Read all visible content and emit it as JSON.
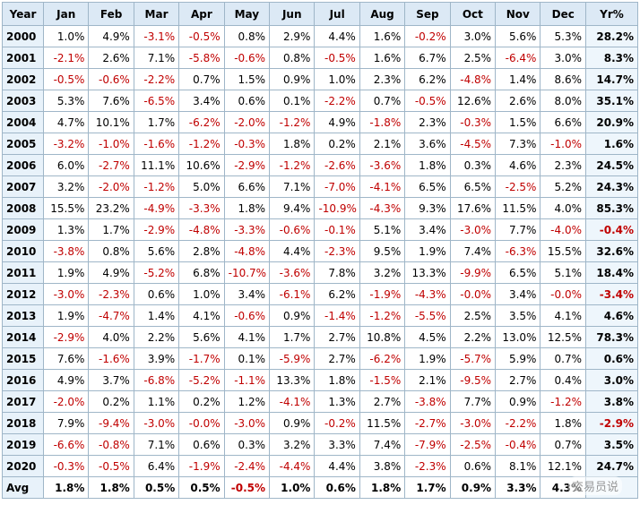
{
  "table": {
    "header": [
      "Year",
      "Jan",
      "Feb",
      "Mar",
      "Apr",
      "May",
      "Jun",
      "Jul",
      "Aug",
      "Sep",
      "Oct",
      "Nov",
      "Dec",
      "Yr%"
    ],
    "rows": [
      [
        "2000",
        "1.0%",
        "4.9%",
        "-3.1%",
        "-0.5%",
        "0.8%",
        "2.9%",
        "4.4%",
        "1.6%",
        "-0.2%",
        "3.0%",
        "5.6%",
        "5.3%",
        "28.2%"
      ],
      [
        "2001",
        "-2.1%",
        "2.6%",
        "7.1%",
        "-5.8%",
        "-0.6%",
        "0.8%",
        "-0.5%",
        "1.6%",
        "6.7%",
        "2.5%",
        "-6.4%",
        "3.0%",
        "8.3%"
      ],
      [
        "2002",
        "-0.5%",
        "-0.6%",
        "-2.2%",
        "0.7%",
        "1.5%",
        "0.9%",
        "1.0%",
        "2.3%",
        "6.2%",
        "-4.8%",
        "1.4%",
        "8.6%",
        "14.7%"
      ],
      [
        "2003",
        "5.3%",
        "7.6%",
        "-6.5%",
        "3.4%",
        "0.6%",
        "0.1%",
        "-2.2%",
        "0.7%",
        "-0.5%",
        "12.6%",
        "2.6%",
        "8.0%",
        "35.1%"
      ],
      [
        "2004",
        "4.7%",
        "10.1%",
        "1.7%",
        "-6.2%",
        "-2.0%",
        "-1.2%",
        "4.9%",
        "-1.8%",
        "2.3%",
        "-0.3%",
        "1.5%",
        "6.6%",
        "20.9%"
      ],
      [
        "2005",
        "-3.2%",
        "-1.0%",
        "-1.6%",
        "-1.2%",
        "-0.3%",
        "1.8%",
        "0.2%",
        "2.1%",
        "3.6%",
        "-4.5%",
        "7.3%",
        "-1.0%",
        "1.6%"
      ],
      [
        "2006",
        "6.0%",
        "-2.7%",
        "11.1%",
        "10.6%",
        "-2.9%",
        "-1.2%",
        "-2.6%",
        "-3.6%",
        "1.8%",
        "0.3%",
        "4.6%",
        "2.3%",
        "24.5%"
      ],
      [
        "2007",
        "3.2%",
        "-2.0%",
        "-1.2%",
        "5.0%",
        "6.6%",
        "7.1%",
        "-7.0%",
        "-4.1%",
        "6.5%",
        "6.5%",
        "-2.5%",
        "5.2%",
        "24.3%"
      ],
      [
        "2008",
        "15.5%",
        "23.2%",
        "-4.9%",
        "-3.3%",
        "1.8%",
        "9.4%",
        "-10.9%",
        "-4.3%",
        "9.3%",
        "17.6%",
        "11.5%",
        "4.0%",
        "85.3%"
      ],
      [
        "2009",
        "1.3%",
        "1.7%",
        "-2.9%",
        "-4.8%",
        "-3.3%",
        "-0.6%",
        "-0.1%",
        "5.1%",
        "3.4%",
        "-3.0%",
        "7.7%",
        "-4.0%",
        "-0.4%"
      ],
      [
        "2010",
        "-3.8%",
        "0.8%",
        "5.6%",
        "2.8%",
        "-4.8%",
        "4.4%",
        "-2.3%",
        "9.5%",
        "1.9%",
        "7.4%",
        "-6.3%",
        "15.5%",
        "32.6%"
      ],
      [
        "2011",
        "1.9%",
        "4.9%",
        "-5.2%",
        "6.8%",
        "-10.7%",
        "-3.6%",
        "7.8%",
        "3.2%",
        "13.3%",
        "-9.9%",
        "6.5%",
        "5.1%",
        "18.4%"
      ],
      [
        "2012",
        "-3.0%",
        "-2.3%",
        "0.6%",
        "1.0%",
        "3.4%",
        "-6.1%",
        "6.2%",
        "-1.9%",
        "-4.3%",
        "-0.0%",
        "3.4%",
        "-0.0%",
        "-3.4%"
      ],
      [
        "2013",
        "1.9%",
        "-4.7%",
        "1.4%",
        "4.1%",
        "-0.6%",
        "0.9%",
        "-1.4%",
        "-1.2%",
        "-5.5%",
        "2.5%",
        "3.5%",
        "4.1%",
        "4.6%"
      ],
      [
        "2014",
        "-2.9%",
        "4.0%",
        "2.2%",
        "5.6%",
        "4.1%",
        "1.7%",
        "2.7%",
        "10.8%",
        "4.5%",
        "2.2%",
        "13.0%",
        "12.5%",
        "78.3%"
      ],
      [
        "2015",
        "7.6%",
        "-1.6%",
        "3.9%",
        "-1.7%",
        "0.1%",
        "-5.9%",
        "2.7%",
        "-6.2%",
        "1.9%",
        "-5.7%",
        "5.9%",
        "0.7%",
        "0.6%"
      ],
      [
        "2016",
        "4.9%",
        "3.7%",
        "-6.8%",
        "-5.2%",
        "-1.1%",
        "13.3%",
        "1.8%",
        "-1.5%",
        "2.1%",
        "-9.5%",
        "2.7%",
        "0.4%",
        "3.0%"
      ],
      [
        "2017",
        "-2.0%",
        "0.2%",
        "1.1%",
        "0.2%",
        "1.2%",
        "-4.1%",
        "1.3%",
        "2.7%",
        "-3.8%",
        "7.7%",
        "0.9%",
        "-1.2%",
        "3.8%"
      ],
      [
        "2018",
        "7.9%",
        "-9.4%",
        "-3.0%",
        "-0.0%",
        "-3.0%",
        "0.9%",
        "-0.2%",
        "11.5%",
        "-2.7%",
        "-3.0%",
        "-2.2%",
        "1.8%",
        "-2.9%"
      ],
      [
        "2019",
        "-6.6%",
        "-0.8%",
        "7.1%",
        "0.6%",
        "0.3%",
        "3.2%",
        "3.3%",
        "7.4%",
        "-7.9%",
        "-2.5%",
        "-0.4%",
        "0.7%",
        "3.5%"
      ],
      [
        "2020",
        "-0.3%",
        "-0.5%",
        "6.4%",
        "-1.9%",
        "-2.4%",
        "-4.4%",
        "4.4%",
        "3.8%",
        "-2.3%",
        "0.6%",
        "8.1%",
        "12.1%",
        "24.7%"
      ],
      [
        "Avg",
        "1.8%",
        "1.8%",
        "0.5%",
        "0.5%",
        "-0.5%",
        "1.0%",
        "0.6%",
        "1.8%",
        "1.7%",
        "0.9%",
        "3.3%",
        "4.3%"
      ]
    ]
  },
  "watermark": "交易员说"
}
